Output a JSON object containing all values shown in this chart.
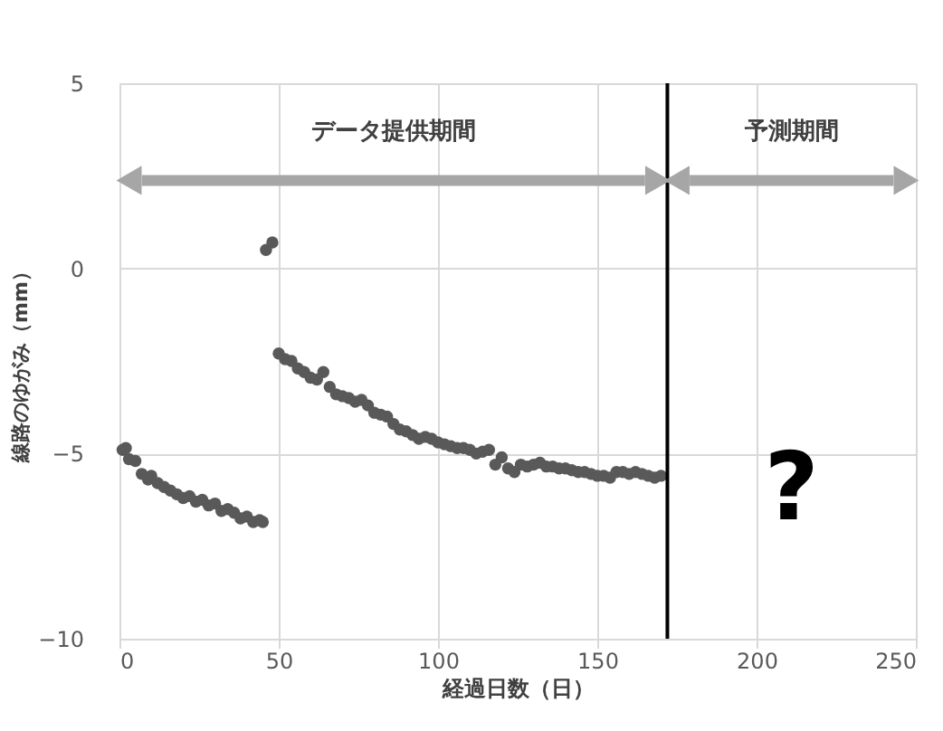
{
  "chart_data": {
    "type": "scatter",
    "xlabel": "経過日数（日）",
    "ylabel": "線路のゆがみ（mm）",
    "x": [
      1,
      2,
      3,
      5,
      7,
      9,
      10,
      12,
      14,
      16,
      18,
      20,
      22,
      24,
      26,
      28,
      30,
      32,
      34,
      36,
      38,
      40,
      42,
      44,
      45,
      46,
      48,
      50,
      52,
      54,
      56,
      58,
      60,
      62,
      64,
      66,
      68,
      70,
      72,
      74,
      76,
      78,
      80,
      82,
      84,
      86,
      88,
      90,
      92,
      94,
      96,
      98,
      100,
      102,
      104,
      106,
      108,
      110,
      112,
      114,
      116,
      118,
      120,
      122,
      124,
      126,
      128,
      130,
      132,
      134,
      136,
      138,
      140,
      142,
      144,
      146,
      148,
      150,
      152,
      154,
      156,
      158,
      160,
      162,
      164,
      166,
      168,
      170
    ],
    "series": [
      {
        "color": "#595959",
        "values": [
          -4.9,
          -4.85,
          -5.15,
          -5.2,
          -5.55,
          -5.7,
          -5.6,
          -5.8,
          -5.9,
          -6.0,
          -6.1,
          -6.2,
          -6.15,
          -6.3,
          -6.25,
          -6.4,
          -6.35,
          -6.55,
          -6.5,
          -6.6,
          -6.75,
          -6.7,
          -6.85,
          -6.8,
          -6.85,
          0.5,
          0.7,
          -2.3,
          -2.45,
          -2.5,
          -2.7,
          -2.8,
          -2.95,
          -3.0,
          -2.8,
          -3.2,
          -3.4,
          -3.45,
          -3.5,
          -3.6,
          -3.55,
          -3.7,
          -3.9,
          -3.95,
          -4.0,
          -4.2,
          -4.35,
          -4.4,
          -4.5,
          -4.6,
          -4.55,
          -4.6,
          -4.7,
          -4.75,
          -4.8,
          -4.85,
          -4.85,
          -4.9,
          -5.0,
          -4.95,
          -4.9,
          -5.3,
          -5.1,
          -5.4,
          -5.5,
          -5.3,
          -5.35,
          -5.3,
          -5.25,
          -5.35,
          -5.35,
          -5.4,
          -5.4,
          -5.45,
          -5.5,
          -5.5,
          -5.55,
          -5.6,
          -5.6,
          -5.65,
          -5.5,
          -5.5,
          -5.55,
          -5.5,
          -5.55,
          -5.6,
          -5.65,
          -5.6
        ]
      }
    ],
    "xlim": [
      0,
      250
    ],
    "xticks": [
      0,
      50,
      100,
      150,
      200,
      250
    ],
    "ylim": [
      -10,
      5
    ],
    "yticks": [
      -10,
      -5,
      0,
      5
    ],
    "grid": true,
    "marker": "circle",
    "ref_lines": [
      {
        "axis": "x",
        "value": 172,
        "color": "#000000"
      }
    ],
    "annotations": [
      "データ提供期間",
      "予測期間",
      "?"
    ]
  }
}
